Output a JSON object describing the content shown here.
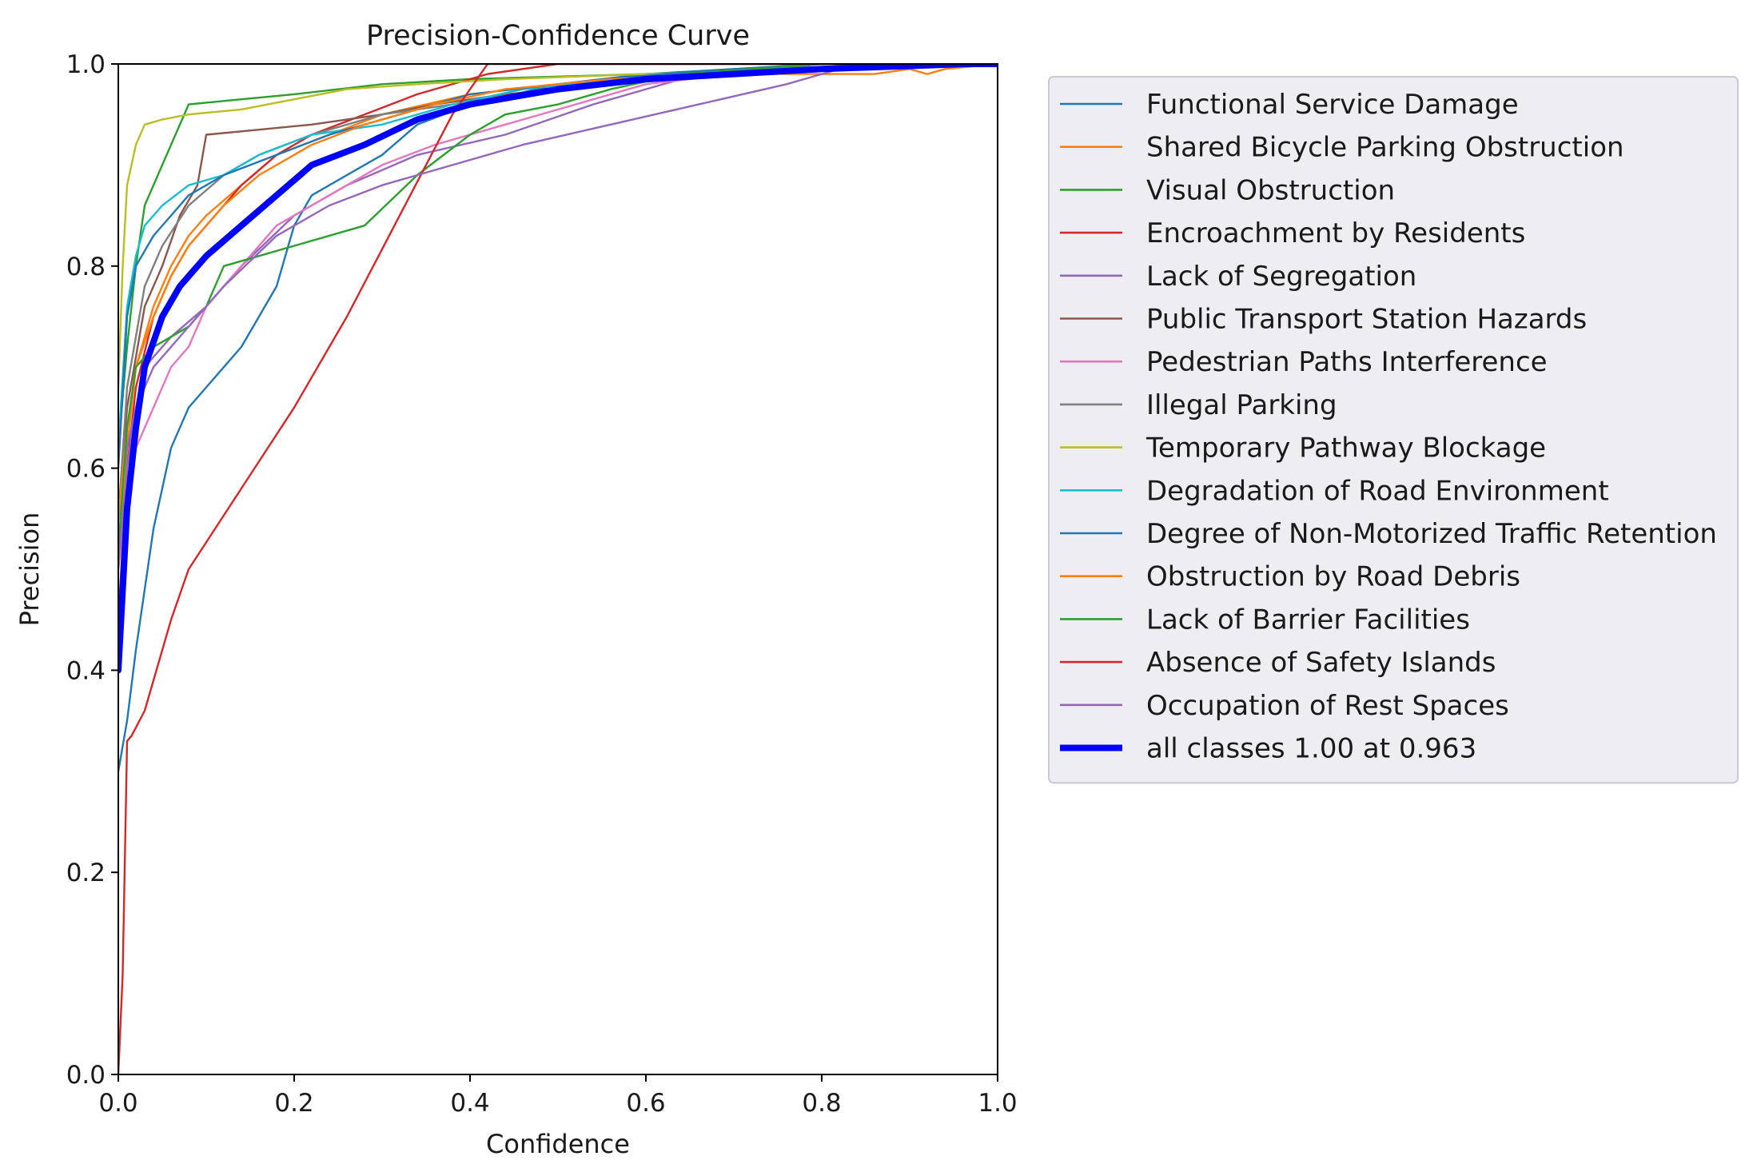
{
  "chart_data": {
    "type": "line",
    "title": "Precision-Confidence Curve",
    "xlabel": "Confidence",
    "ylabel": "Precision",
    "xlim": [
      0,
      1
    ],
    "ylim": [
      0,
      1
    ],
    "xticks": [
      "0.0",
      "0.2",
      "0.4",
      "0.6",
      "0.8",
      "1.0"
    ],
    "yticks": [
      "0.0",
      "0.2",
      "0.4",
      "0.6",
      "0.8",
      "1.0"
    ],
    "grid": false,
    "legend_position": "outside-right",
    "series": [
      {
        "name": "Functional Service Damage",
        "color": "#1f77b4",
        "width": "thin",
        "points": [
          [
            0,
            0.3
          ],
          [
            0.01,
            0.35
          ],
          [
            0.02,
            0.42
          ],
          [
            0.03,
            0.48
          ],
          [
            0.04,
            0.54
          ],
          [
            0.05,
            0.58
          ],
          [
            0.06,
            0.62
          ],
          [
            0.08,
            0.66
          ],
          [
            0.1,
            0.68
          ],
          [
            0.12,
            0.7
          ],
          [
            0.14,
            0.72
          ],
          [
            0.16,
            0.75
          ],
          [
            0.18,
            0.78
          ],
          [
            0.2,
            0.84
          ],
          [
            0.22,
            0.87
          ],
          [
            0.26,
            0.89
          ],
          [
            0.3,
            0.91
          ],
          [
            0.34,
            0.94
          ],
          [
            0.4,
            0.96
          ],
          [
            0.5,
            0.98
          ],
          [
            0.6,
            0.99
          ],
          [
            0.8,
            1.0
          ],
          [
            1.0,
            1.0
          ]
        ]
      },
      {
        "name": "Shared Bicycle Parking Obstruction",
        "color": "#ff7f0e",
        "width": "thin",
        "points": [
          [
            0,
            0.5
          ],
          [
            0.01,
            0.62
          ],
          [
            0.02,
            0.7
          ],
          [
            0.04,
            0.76
          ],
          [
            0.06,
            0.8
          ],
          [
            0.08,
            0.83
          ],
          [
            0.1,
            0.85
          ],
          [
            0.14,
            0.88
          ],
          [
            0.18,
            0.91
          ],
          [
            0.24,
            0.93
          ],
          [
            0.3,
            0.95
          ],
          [
            0.4,
            0.97
          ],
          [
            0.5,
            0.98
          ],
          [
            0.7,
            0.99
          ],
          [
            0.86,
            0.99
          ],
          [
            0.9,
            0.995
          ],
          [
            0.92,
            0.99
          ],
          [
            0.94,
            0.995
          ],
          [
            1.0,
            1.0
          ]
        ]
      },
      {
        "name": "Visual Obstruction",
        "color": "#2ca02c",
        "width": "thin",
        "points": [
          [
            0,
            0.62
          ],
          [
            0.01,
            0.72
          ],
          [
            0.02,
            0.8
          ],
          [
            0.03,
            0.86
          ],
          [
            0.05,
            0.9
          ],
          [
            0.06,
            0.92
          ],
          [
            0.08,
            0.96
          ],
          [
            0.14,
            0.965
          ],
          [
            0.2,
            0.97
          ],
          [
            0.3,
            0.98
          ],
          [
            0.4,
            0.985
          ],
          [
            0.6,
            0.99
          ],
          [
            0.8,
            0.995
          ],
          [
            1.0,
            1.0
          ]
        ]
      },
      {
        "name": "Encroachment by Residents",
        "color": "#d62728",
        "width": "thin",
        "points": [
          [
            0,
            0.45
          ],
          [
            0.01,
            0.6
          ],
          [
            0.02,
            0.68
          ],
          [
            0.04,
            0.75
          ],
          [
            0.06,
            0.79
          ],
          [
            0.08,
            0.82
          ],
          [
            0.1,
            0.84
          ],
          [
            0.14,
            0.88
          ],
          [
            0.18,
            0.91
          ],
          [
            0.22,
            0.93
          ],
          [
            0.28,
            0.95
          ],
          [
            0.34,
            0.97
          ],
          [
            0.42,
            0.99
          ],
          [
            0.5,
            1.0
          ],
          [
            1.0,
            1.0
          ]
        ]
      },
      {
        "name": "Lack of Segregation",
        "color": "#9467bd",
        "width": "thin",
        "points": [
          [
            0,
            0.55
          ],
          [
            0.01,
            0.62
          ],
          [
            0.03,
            0.7
          ],
          [
            0.06,
            0.73
          ],
          [
            0.1,
            0.76
          ],
          [
            0.14,
            0.8
          ],
          [
            0.2,
            0.85
          ],
          [
            0.26,
            0.88
          ],
          [
            0.34,
            0.91
          ],
          [
            0.44,
            0.93
          ],
          [
            0.54,
            0.96
          ],
          [
            0.6,
            0.975
          ],
          [
            0.66,
            0.99
          ],
          [
            0.8,
            1.0
          ],
          [
            1.0,
            1.0
          ]
        ]
      },
      {
        "name": "Public Transport Station Hazards",
        "color": "#8c564b",
        "width": "thin",
        "points": [
          [
            0,
            0.55
          ],
          [
            0.01,
            0.66
          ],
          [
            0.03,
            0.76
          ],
          [
            0.05,
            0.8
          ],
          [
            0.07,
            0.85
          ],
          [
            0.09,
            0.88
          ],
          [
            0.1,
            0.93
          ],
          [
            0.16,
            0.935
          ],
          [
            0.22,
            0.94
          ],
          [
            0.3,
            0.95
          ],
          [
            0.36,
            0.96
          ],
          [
            0.44,
            0.97
          ],
          [
            0.56,
            0.98
          ],
          [
            0.68,
            0.99
          ],
          [
            1.0,
            1.0
          ]
        ]
      },
      {
        "name": "Pedestrian Paths Interference",
        "color": "#e377c2",
        "width": "thin",
        "points": [
          [
            0,
            0.5
          ],
          [
            0.01,
            0.58
          ],
          [
            0.02,
            0.62
          ],
          [
            0.04,
            0.66
          ],
          [
            0.06,
            0.7
          ],
          [
            0.08,
            0.72
          ],
          [
            0.1,
            0.76
          ],
          [
            0.14,
            0.8
          ],
          [
            0.18,
            0.84
          ],
          [
            0.24,
            0.87
          ],
          [
            0.3,
            0.9
          ],
          [
            0.36,
            0.92
          ],
          [
            0.44,
            0.94
          ],
          [
            0.52,
            0.96
          ],
          [
            0.6,
            0.98
          ],
          [
            0.7,
            0.99
          ],
          [
            0.85,
            1.0
          ],
          [
            1.0,
            1.0
          ]
        ]
      },
      {
        "name": "Illegal Parking",
        "color": "#7f7f7f",
        "width": "thin",
        "points": [
          [
            0,
            0.55
          ],
          [
            0.01,
            0.68
          ],
          [
            0.03,
            0.78
          ],
          [
            0.05,
            0.82
          ],
          [
            0.08,
            0.86
          ],
          [
            0.12,
            0.89
          ],
          [
            0.16,
            0.91
          ],
          [
            0.22,
            0.93
          ],
          [
            0.3,
            0.95
          ],
          [
            0.38,
            0.96
          ],
          [
            0.46,
            0.97
          ],
          [
            0.56,
            0.98
          ],
          [
            0.64,
            0.985
          ],
          [
            0.8,
            1.0
          ],
          [
            1.0,
            1.0
          ]
        ]
      },
      {
        "name": "Temporary Pathway Blockage",
        "color": "#bcbd22",
        "width": "thin",
        "points": [
          [
            0,
            0.68
          ],
          [
            0.005,
            0.8
          ],
          [
            0.01,
            0.88
          ],
          [
            0.02,
            0.92
          ],
          [
            0.03,
            0.94
          ],
          [
            0.05,
            0.945
          ],
          [
            0.08,
            0.95
          ],
          [
            0.14,
            0.955
          ],
          [
            0.2,
            0.965
          ],
          [
            0.26,
            0.975
          ],
          [
            0.34,
            0.98
          ],
          [
            0.44,
            0.985
          ],
          [
            0.6,
            0.99
          ],
          [
            0.8,
            0.995
          ],
          [
            1.0,
            1.0
          ]
        ]
      },
      {
        "name": "Degradation of Road Environment",
        "color": "#17becf",
        "width": "thin",
        "points": [
          [
            0,
            0.62
          ],
          [
            0.01,
            0.76
          ],
          [
            0.02,
            0.81
          ],
          [
            0.03,
            0.84
          ],
          [
            0.05,
            0.86
          ],
          [
            0.08,
            0.88
          ],
          [
            0.12,
            0.89
          ],
          [
            0.16,
            0.91
          ],
          [
            0.22,
            0.93
          ],
          [
            0.3,
            0.94
          ],
          [
            0.38,
            0.96
          ],
          [
            0.46,
            0.975
          ],
          [
            0.56,
            0.985
          ],
          [
            0.7,
            0.99
          ],
          [
            1.0,
            1.0
          ]
        ]
      },
      {
        "name": "Degree of Non-Motorized Traffic Retention",
        "color": "#1f77b4",
        "width": "thin",
        "points": [
          [
            0,
            0.6
          ],
          [
            0.01,
            0.75
          ],
          [
            0.02,
            0.8
          ],
          [
            0.04,
            0.83
          ],
          [
            0.06,
            0.85
          ],
          [
            0.08,
            0.87
          ],
          [
            0.12,
            0.89
          ],
          [
            0.18,
            0.91
          ],
          [
            0.24,
            0.93
          ],
          [
            0.32,
            0.95
          ],
          [
            0.4,
            0.97
          ],
          [
            0.5,
            0.98
          ],
          [
            0.62,
            0.99
          ],
          [
            0.8,
            1.0
          ],
          [
            1.0,
            1.0
          ]
        ]
      },
      {
        "name": "Obstruction by Road Debris",
        "color": "#ff7f0e",
        "width": "thin",
        "points": [
          [
            0,
            0.55
          ],
          [
            0.01,
            0.64
          ],
          [
            0.02,
            0.7
          ],
          [
            0.04,
            0.75
          ],
          [
            0.06,
            0.79
          ],
          [
            0.08,
            0.82
          ],
          [
            0.12,
            0.86
          ],
          [
            0.16,
            0.89
          ],
          [
            0.22,
            0.92
          ],
          [
            0.28,
            0.94
          ],
          [
            0.36,
            0.96
          ],
          [
            0.44,
            0.975
          ],
          [
            0.56,
            0.985
          ],
          [
            0.7,
            0.99
          ],
          [
            0.86,
            0.995
          ],
          [
            1.0,
            1.0
          ]
        ]
      },
      {
        "name": "Lack of Barrier Facilities",
        "color": "#2ca02c",
        "width": "thin",
        "points": [
          [
            0,
            0.52
          ],
          [
            0.01,
            0.64
          ],
          [
            0.02,
            0.7
          ],
          [
            0.04,
            0.72
          ],
          [
            0.06,
            0.73
          ],
          [
            0.08,
            0.74
          ],
          [
            0.1,
            0.76
          ],
          [
            0.12,
            0.8
          ],
          [
            0.16,
            0.81
          ],
          [
            0.2,
            0.82
          ],
          [
            0.28,
            0.84
          ],
          [
            0.34,
            0.89
          ],
          [
            0.4,
            0.93
          ],
          [
            0.44,
            0.95
          ],
          [
            0.5,
            0.96
          ],
          [
            0.56,
            0.975
          ],
          [
            0.64,
            0.99
          ],
          [
            0.8,
            1.0
          ],
          [
            1.0,
            1.0
          ]
        ]
      },
      {
        "name": "Absence of Safety Islands",
        "color": "#d62728",
        "width": "thin",
        "points": [
          [
            0,
            0.0
          ],
          [
            0.005,
            0.1
          ],
          [
            0.01,
            0.33
          ],
          [
            0.015,
            0.335
          ],
          [
            0.03,
            0.36
          ],
          [
            0.06,
            0.45
          ],
          [
            0.08,
            0.5
          ],
          [
            0.14,
            0.58
          ],
          [
            0.2,
            0.66
          ],
          [
            0.26,
            0.75
          ],
          [
            0.32,
            0.85
          ],
          [
            0.38,
            0.95
          ],
          [
            0.42,
            1.0
          ],
          [
            1.0,
            1.0
          ]
        ]
      },
      {
        "name": "Occupation of Rest Spaces",
        "color": "#9467bd",
        "width": "thin",
        "points": [
          [
            0,
            0.5
          ],
          [
            0.01,
            0.6
          ],
          [
            0.02,
            0.66
          ],
          [
            0.04,
            0.7
          ],
          [
            0.08,
            0.74
          ],
          [
            0.12,
            0.78
          ],
          [
            0.18,
            0.83
          ],
          [
            0.24,
            0.86
          ],
          [
            0.3,
            0.88
          ],
          [
            0.38,
            0.9
          ],
          [
            0.46,
            0.92
          ],
          [
            0.56,
            0.94
          ],
          [
            0.66,
            0.96
          ],
          [
            0.76,
            0.98
          ],
          [
            0.84,
            1.0
          ],
          [
            1.0,
            1.0
          ]
        ]
      },
      {
        "name": "all classes 1.00 at 0.963",
        "color": "#0000ff",
        "width": "thick",
        "points": [
          [
            0,
            0.4
          ],
          [
            0.005,
            0.48
          ],
          [
            0.01,
            0.56
          ],
          [
            0.02,
            0.64
          ],
          [
            0.03,
            0.7
          ],
          [
            0.05,
            0.75
          ],
          [
            0.07,
            0.78
          ],
          [
            0.1,
            0.81
          ],
          [
            0.14,
            0.84
          ],
          [
            0.18,
            0.87
          ],
          [
            0.22,
            0.9
          ],
          [
            0.28,
            0.92
          ],
          [
            0.34,
            0.945
          ],
          [
            0.4,
            0.96
          ],
          [
            0.5,
            0.975
          ],
          [
            0.6,
            0.985
          ],
          [
            0.7,
            0.99
          ],
          [
            0.8,
            0.995
          ],
          [
            0.9,
            0.998
          ],
          [
            0.963,
            1.0
          ],
          [
            1.0,
            1.0
          ]
        ]
      }
    ]
  }
}
